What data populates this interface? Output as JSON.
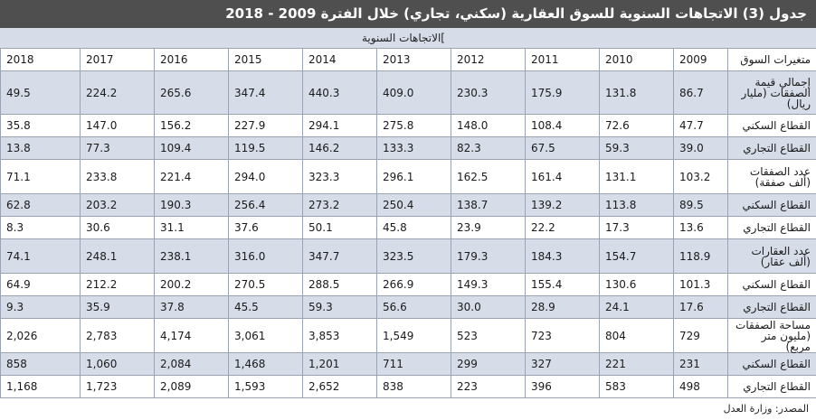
{
  "title": "جدول (3) الاتجاهات السنوية للسوق العقارية (سكني، تجاري) خلال الفترة 2009 - 2018",
  "subheader": "]الاتجاهات السنوية",
  "table": {
    "label_header": "متغيرات السوق",
    "years": [
      "2009",
      "2010",
      "2011",
      "2012",
      "2013",
      "2014",
      "2015",
      "2016",
      "2017",
      "2018"
    ],
    "rows": [
      {
        "label": "إجمالي قيمة الصفقات (مليار ريال)",
        "values": [
          "86.7",
          "131.8",
          "175.9",
          "230.3",
          "409.0",
          "440.3",
          "347.4",
          "265.6",
          "224.2",
          "49.5"
        ]
      },
      {
        "label": "القطاع السكني",
        "values": [
          "47.7",
          "72.6",
          "108.4",
          "148.0",
          "275.8",
          "294.1",
          "227.9",
          "156.2",
          "147.0",
          "35.8"
        ]
      },
      {
        "label": "القطاع التجاري",
        "values": [
          "39.0",
          "59.3",
          "67.5",
          "82.3",
          "133.3",
          "146.2",
          "119.5",
          "109.4",
          "77.3",
          "13.8"
        ]
      },
      {
        "label": "عدد الصفقات (ألف صفقة)",
        "values": [
          "103.2",
          "131.1",
          "161.4",
          "162.5",
          "296.1",
          "323.3",
          "294.0",
          "221.4",
          "233.8",
          "71.1"
        ]
      },
      {
        "label": "القطاع السكني",
        "values": [
          "89.5",
          "113.8",
          "139.2",
          "138.7",
          "250.4",
          "273.2",
          "256.4",
          "190.3",
          "203.2",
          "62.8"
        ]
      },
      {
        "label": "القطاع التجاري",
        "values": [
          "13.6",
          "17.3",
          "22.2",
          "23.9",
          "45.8",
          "50.1",
          "37.6",
          "31.1",
          "30.6",
          "8.3"
        ]
      },
      {
        "label": "عدد العقارات (ألف عقار)",
        "values": [
          "118.9",
          "154.7",
          "184.3",
          "179.3",
          "323.5",
          "347.7",
          "316.0",
          "238.1",
          "248.1",
          "74.1"
        ]
      },
      {
        "label": "القطاع السكني",
        "values": [
          "101.3",
          "130.6",
          "155.4",
          "149.3",
          "266.9",
          "288.5",
          "270.5",
          "200.2",
          "212.2",
          "64.9"
        ]
      },
      {
        "label": "القطاع التجاري",
        "values": [
          "17.6",
          "24.1",
          "28.9",
          "30.0",
          "56.6",
          "59.3",
          "45.5",
          "37.8",
          "35.9",
          "9.3"
        ]
      },
      {
        "label": "مساحة الصفقات (مليون متر مربع)",
        "values": [
          "729",
          "804",
          "723",
          "523",
          "1,549",
          "3,853",
          "3,061",
          "4,174",
          "2,783",
          "2,026"
        ]
      },
      {
        "label": "القطاع السكني",
        "values": [
          "231",
          "221",
          "327",
          "299",
          "711",
          "1,201",
          "1,468",
          "2,084",
          "1,060",
          "858"
        ]
      },
      {
        "label": "القطاع التجاري",
        "values": [
          "498",
          "583",
          "396",
          "223",
          "838",
          "2,652",
          "1,593",
          "2,089",
          "1,723",
          "1,168"
        ]
      }
    ]
  },
  "source": "المصدر: وزارة العدل"
}
